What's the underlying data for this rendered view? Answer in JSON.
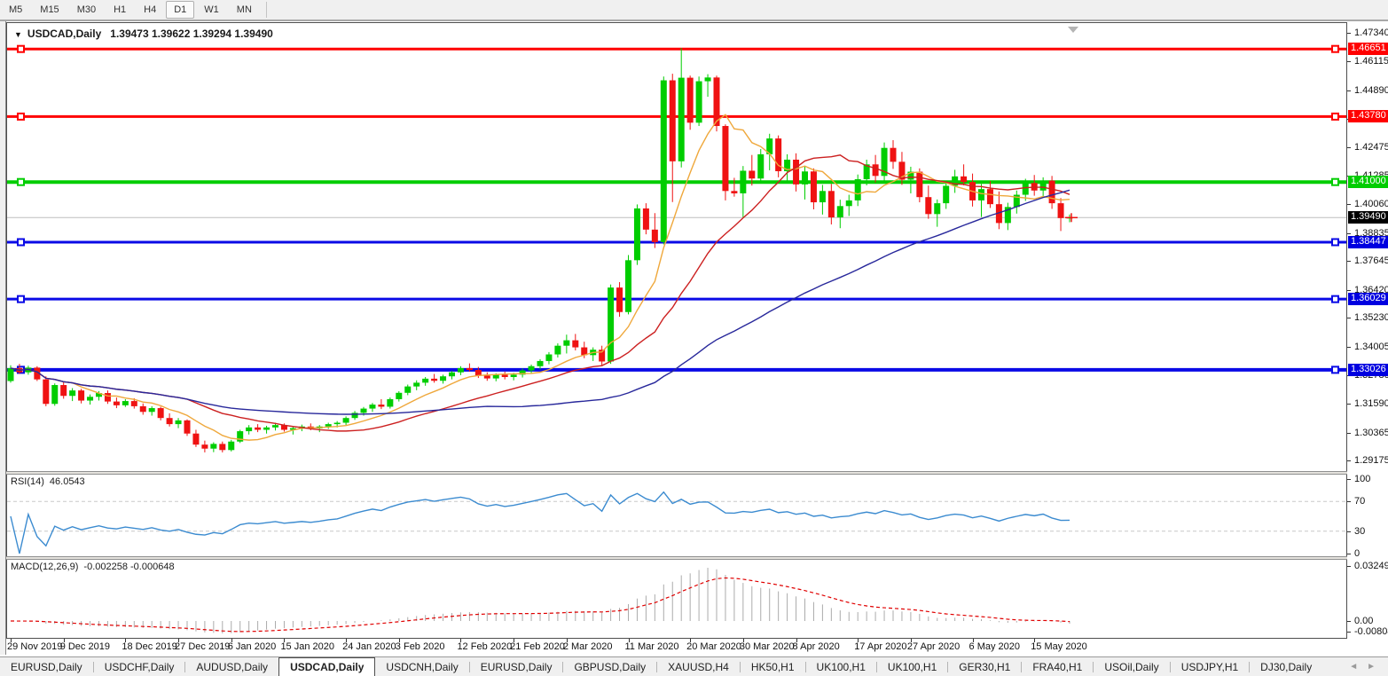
{
  "toolbar": {
    "timeframes": [
      {
        "label": "M5",
        "active": false
      },
      {
        "label": "M15",
        "active": false
      },
      {
        "label": "M30",
        "active": false
      },
      {
        "label": "H1",
        "active": false
      },
      {
        "label": "H4",
        "active": false
      },
      {
        "label": "D1",
        "active": true
      },
      {
        "label": "W1",
        "active": false
      },
      {
        "label": "MN",
        "active": false
      }
    ]
  },
  "chart_header": {
    "dropdown_icon": "▼",
    "symbol": "USDCAD,Daily",
    "ohlc_text": "1.39473 1.39622 1.39294 1.39490"
  },
  "indicators": {
    "rsi": {
      "label": "RSI(14)",
      "value": "46.0543",
      "color": "#3b8bd0",
      "levels": [
        70,
        30
      ],
      "axis_labels": [
        "100",
        "70",
        "30",
        "0"
      ]
    },
    "macd": {
      "label": "MACD(12,26,9)",
      "values": "-0.002258 -0.000648",
      "hist_color": "#ababab",
      "signal_color": "#e00000",
      "axis_labels": [
        "0.032493",
        "0.00",
        "-0.008086"
      ]
    }
  },
  "tabs": {
    "items": [
      {
        "label": "EURUSD,Daily",
        "active": false
      },
      {
        "label": "USDCHF,Daily",
        "active": false
      },
      {
        "label": "AUDUSD,Daily",
        "active": false
      },
      {
        "label": "USDCAD,Daily",
        "active": true
      },
      {
        "label": "USDCNH,Daily",
        "active": false
      },
      {
        "label": "EURUSD,Daily",
        "active": false
      },
      {
        "label": "GBPUSD,Daily",
        "active": false
      },
      {
        "label": "XAUUSD,H4",
        "active": false
      },
      {
        "label": "HK50,H1",
        "active": false
      },
      {
        "label": "UK100,H1",
        "active": false
      },
      {
        "label": "UK100,H1",
        "active": false
      },
      {
        "label": "GER30,H1",
        "active": false
      },
      {
        "label": "FRA40,H1",
        "active": false
      },
      {
        "label": "USOil,Daily",
        "active": false
      },
      {
        "label": "USDJPY,H1",
        "active": false
      },
      {
        "label": "DJ30,Daily",
        "active": false
      }
    ],
    "scroll_left": "◄",
    "scroll_right": "►"
  },
  "chart_data": {
    "type": "candlestick",
    "title": "USDCAD,Daily",
    "up_color": "#00cd00",
    "down_color": "#ef1212",
    "current_price": 1.3949,
    "current_price_line_color": "#bdbdbd",
    "ylim": [
      1.2884,
      1.476
    ],
    "y_ticks": [
      1.4734,
      1.46115,
      1.4489,
      1.43665,
      1.42475,
      1.41285,
      1.4006,
      1.38835,
      1.37645,
      1.3642,
      1.3523,
      1.34005,
      1.3278,
      1.3159,
      1.30365,
      1.29175
    ],
    "price_badges": [
      {
        "price": 1.46651,
        "label": "1.46651",
        "color": "#ff0000"
      },
      {
        "price": 1.4378,
        "label": "1.43780",
        "color": "#ff0000"
      },
      {
        "price": 1.41,
        "label": "1.41000",
        "color": "#00cd00"
      },
      {
        "price": 1.3949,
        "label": "1.39490",
        "color": "#000000"
      },
      {
        "price": 1.38447,
        "label": "1.38447",
        "color": "#0000e0"
      },
      {
        "price": 1.36029,
        "label": "1.36029",
        "color": "#0000e0"
      },
      {
        "price": 1.33026,
        "label": "1.33026",
        "color": "#0000e0"
      }
    ],
    "hlines": [
      {
        "price": 1.46651,
        "color": "#ff0000",
        "width": 3
      },
      {
        "price": 1.4378,
        "color": "#ff0000",
        "width": 3
      },
      {
        "price": 1.41,
        "color": "#00cd00",
        "width": 4
      },
      {
        "price": 1.38447,
        "color": "#0a0ae6",
        "width": 3
      },
      {
        "price": 1.36029,
        "color": "#0a0ae6",
        "width": 3
      },
      {
        "price": 1.33026,
        "color": "#0a0ae6",
        "width": 4
      }
    ],
    "moving_averages": [
      {
        "type": "sma",
        "period": 8,
        "color": "#efa83c"
      },
      {
        "type": "sma",
        "period": 21,
        "color": "#cc2020"
      },
      {
        "type": "sma",
        "period": 55,
        "color": "#28289b"
      }
    ],
    "rsi_settings": {
      "period": 14,
      "levels": [
        30,
        70
      ],
      "ylim": [
        0,
        100
      ]
    },
    "macd_settings": {
      "fast": 12,
      "slow": 26,
      "signal": 9
    },
    "x_tick_indices": [
      0,
      6,
      13,
      19,
      25,
      31,
      38,
      44,
      51,
      57,
      63,
      70,
      77,
      83,
      89,
      96,
      102,
      109,
      116
    ],
    "x_tick_labels": [
      "29 Nov 2019",
      "9 Dec 2019",
      "18 Dec 2019",
      "27 Dec 2019",
      "6 Jan 2020",
      "15 Jan 2020",
      "24 Jan 2020",
      "3 Feb 2020",
      "12 Feb 2020",
      "21 Feb 2020",
      "2 Mar 2020",
      "11 Mar 2020",
      "20 Mar 2020",
      "30 Mar 2020",
      "8 Apr 2020",
      "17 Apr 2020",
      "27 Apr 2020",
      "6 May 2020",
      "15 May 2020"
    ],
    "ohlc": [
      [
        1.3255,
        1.3322,
        1.3248,
        1.331
      ],
      [
        1.331,
        1.3328,
        1.3285,
        1.3292
      ],
      [
        1.3292,
        1.332,
        1.3282,
        1.3312
      ],
      [
        1.3312,
        1.3318,
        1.3255,
        1.3262
      ],
      [
        1.3262,
        1.3275,
        1.3148,
        1.3158
      ],
      [
        1.3158,
        1.3245,
        1.315,
        1.3238
      ],
      [
        1.3238,
        1.3252,
        1.318,
        1.3192
      ],
      [
        1.3192,
        1.3225,
        1.317,
        1.3215
      ],
      [
        1.3215,
        1.3222,
        1.316,
        1.3172
      ],
      [
        1.3172,
        1.3198,
        1.3155,
        1.3188
      ],
      [
        1.3188,
        1.3212,
        1.3172,
        1.3204
      ],
      [
        1.3204,
        1.3215,
        1.3158,
        1.3168
      ],
      [
        1.3168,
        1.3185,
        1.314,
        1.3152
      ],
      [
        1.3152,
        1.3178,
        1.3145,
        1.317
      ],
      [
        1.317,
        1.3182,
        1.3138,
        1.3148
      ],
      [
        1.3148,
        1.316,
        1.3112,
        1.3124
      ],
      [
        1.3124,
        1.3148,
        1.3108,
        1.314
      ],
      [
        1.314,
        1.3146,
        1.3088,
        1.3098
      ],
      [
        1.3098,
        1.3118,
        1.3062,
        1.3072
      ],
      [
        1.3072,
        1.3098,
        1.3055,
        1.3088
      ],
      [
        1.3088,
        1.3092,
        1.3022,
        1.3032
      ],
      [
        1.3032,
        1.3048,
        1.2975,
        1.2985
      ],
      [
        1.2985,
        1.3002,
        1.2952,
        1.2968
      ],
      [
        1.2968,
        1.2995,
        1.2953,
        1.2988
      ],
      [
        1.2988,
        1.2998,
        1.2952,
        1.2962
      ],
      [
        1.2962,
        1.3005,
        1.2956,
        1.2998
      ],
      [
        1.2998,
        1.3048,
        1.2992,
        1.3042
      ],
      [
        1.3042,
        1.3068,
        1.3028,
        1.3058
      ],
      [
        1.3058,
        1.3072,
        1.3038,
        1.3048
      ],
      [
        1.3048,
        1.3065,
        1.3032,
        1.3058
      ],
      [
        1.3058,
        1.3078,
        1.3045,
        1.3068
      ],
      [
        1.3068,
        1.3075,
        1.304,
        1.3048
      ],
      [
        1.3048,
        1.3062,
        1.3028,
        1.3055
      ],
      [
        1.3055,
        1.307,
        1.3042,
        1.3062
      ],
      [
        1.3062,
        1.3075,
        1.3046,
        1.3054
      ],
      [
        1.3054,
        1.3068,
        1.3038,
        1.3062
      ],
      [
        1.3062,
        1.3078,
        1.3052,
        1.3072
      ],
      [
        1.3072,
        1.3085,
        1.3058,
        1.3078
      ],
      [
        1.3078,
        1.3105,
        1.3068,
        1.3098
      ],
      [
        1.3098,
        1.3128,
        1.309,
        1.312
      ],
      [
        1.312,
        1.3145,
        1.3108,
        1.3138
      ],
      [
        1.3138,
        1.3162,
        1.3124,
        1.3155
      ],
      [
        1.3155,
        1.3178,
        1.3136,
        1.3146
      ],
      [
        1.3146,
        1.3185,
        1.3138,
        1.3178
      ],
      [
        1.3178,
        1.3212,
        1.3168,
        1.3205
      ],
      [
        1.3205,
        1.324,
        1.3195,
        1.3232
      ],
      [
        1.3232,
        1.3258,
        1.3216,
        1.3248
      ],
      [
        1.3248,
        1.3272,
        1.3235,
        1.3265
      ],
      [
        1.3265,
        1.3285,
        1.3248,
        1.3256
      ],
      [
        1.3256,
        1.3282,
        1.3244,
        1.3275
      ],
      [
        1.3275,
        1.3298,
        1.3262,
        1.3292
      ],
      [
        1.3292,
        1.3318,
        1.328,
        1.331
      ],
      [
        1.331,
        1.333,
        1.3295,
        1.3302
      ],
      [
        1.3302,
        1.3315,
        1.3268,
        1.3278
      ],
      [
        1.3278,
        1.3292,
        1.3256,
        1.3266
      ],
      [
        1.3266,
        1.3288,
        1.3254,
        1.3282
      ],
      [
        1.3282,
        1.3295,
        1.3262,
        1.3272
      ],
      [
        1.3272,
        1.329,
        1.3258,
        1.3282
      ],
      [
        1.3282,
        1.3308,
        1.327,
        1.33
      ],
      [
        1.33,
        1.3325,
        1.3286,
        1.3318
      ],
      [
        1.3318,
        1.3348,
        1.3305,
        1.334
      ],
      [
        1.334,
        1.3378,
        1.3326,
        1.3368
      ],
      [
        1.3368,
        1.3415,
        1.3355,
        1.3405
      ],
      [
        1.3405,
        1.3452,
        1.3372,
        1.3428
      ],
      [
        1.3428,
        1.3455,
        1.3385,
        1.3398
      ],
      [
        1.3398,
        1.3422,
        1.3352,
        1.3365
      ],
      [
        1.3365,
        1.3398,
        1.334,
        1.3388
      ],
      [
        1.3388,
        1.3405,
        1.3322,
        1.3338
      ],
      [
        1.3338,
        1.3665,
        1.3328,
        1.3652
      ],
      [
        1.3652,
        1.3675,
        1.3528,
        1.3548
      ],
      [
        1.3548,
        1.379,
        1.3538,
        1.3768
      ],
      [
        1.3768,
        1.4005,
        1.3748,
        1.3988
      ],
      [
        1.3988,
        1.401,
        1.3878,
        1.3898
      ],
      [
        1.3898,
        1.3968,
        1.382,
        1.3845
      ],
      [
        1.3845,
        1.4548,
        1.3835,
        1.4532
      ],
      [
        1.4532,
        1.456,
        1.4015,
        1.4188
      ],
      [
        1.4188,
        1.4669,
        1.4162,
        1.4543
      ],
      [
        1.4543,
        1.4552,
        1.4322,
        1.4352
      ],
      [
        1.4352,
        1.4548,
        1.4338,
        1.4528
      ],
      [
        1.4528,
        1.4558,
        1.4462,
        1.4544
      ],
      [
        1.4544,
        1.4552,
        1.4315,
        1.4338
      ],
      [
        1.4338,
        1.4345,
        1.4022,
        1.4062
      ],
      [
        1.4062,
        1.4118,
        1.4038,
        1.4052
      ],
      [
        1.4052,
        1.4168,
        1.3948,
        1.4148
      ],
      [
        1.4148,
        1.4215,
        1.4085,
        1.4115
      ],
      [
        1.4115,
        1.424,
        1.4096,
        1.4218
      ],
      [
        1.4218,
        1.4305,
        1.415,
        1.4285
      ],
      [
        1.4285,
        1.4298,
        1.412,
        1.4146
      ],
      [
        1.4146,
        1.4218,
        1.4105,
        1.4195
      ],
      [
        1.4195,
        1.4222,
        1.406,
        1.409
      ],
      [
        1.409,
        1.4165,
        1.4026,
        1.4145
      ],
      [
        1.4145,
        1.4158,
        1.3984,
        1.4014
      ],
      [
        1.4014,
        1.4088,
        1.3962,
        1.4062
      ],
      [
        1.4062,
        1.4092,
        1.392,
        1.395
      ],
      [
        1.395,
        1.4025,
        1.3904,
        1.3998
      ],
      [
        1.3998,
        1.4046,
        1.3956,
        1.4022
      ],
      [
        1.4022,
        1.4132,
        1.3998,
        1.4112
      ],
      [
        1.4112,
        1.4195,
        1.4086,
        1.4175
      ],
      [
        1.4175,
        1.4215,
        1.4098,
        1.4126
      ],
      [
        1.4126,
        1.4268,
        1.4104,
        1.4245
      ],
      [
        1.4245,
        1.4278,
        1.4156,
        1.4186
      ],
      [
        1.4186,
        1.4228,
        1.4088,
        1.411
      ],
      [
        1.411,
        1.4165,
        1.4052,
        1.4144
      ],
      [
        1.4144,
        1.4158,
        1.4014,
        1.4036
      ],
      [
        1.4036,
        1.4085,
        1.3944,
        1.3964
      ],
      [
        1.3964,
        1.4026,
        1.391,
        1.401
      ],
      [
        1.401,
        1.4102,
        1.3986,
        1.4084
      ],
      [
        1.4084,
        1.4152,
        1.4054,
        1.4124
      ],
      [
        1.4124,
        1.4175,
        1.4086,
        1.41
      ],
      [
        1.41,
        1.4136,
        1.3996,
        1.4022
      ],
      [
        1.4022,
        1.4092,
        1.3952,
        1.407
      ],
      [
        1.407,
        1.4104,
        1.399,
        1.4006
      ],
      [
        1.4006,
        1.406,
        1.39,
        1.3926
      ],
      [
        1.3926,
        1.4012,
        1.3896,
        1.3994
      ],
      [
        1.3994,
        1.4064,
        1.3966,
        1.4046
      ],
      [
        1.4046,
        1.4114,
        1.402,
        1.4096
      ],
      [
        1.4096,
        1.413,
        1.4042,
        1.4064
      ],
      [
        1.4064,
        1.412,
        1.4036,
        1.4106
      ],
      [
        1.4106,
        1.4126,
        1.3986,
        1.401
      ],
      [
        1.401,
        1.4032,
        1.3892,
        1.3947
      ],
      [
        1.39473,
        1.39622,
        1.39294,
        1.3949
      ]
    ]
  }
}
